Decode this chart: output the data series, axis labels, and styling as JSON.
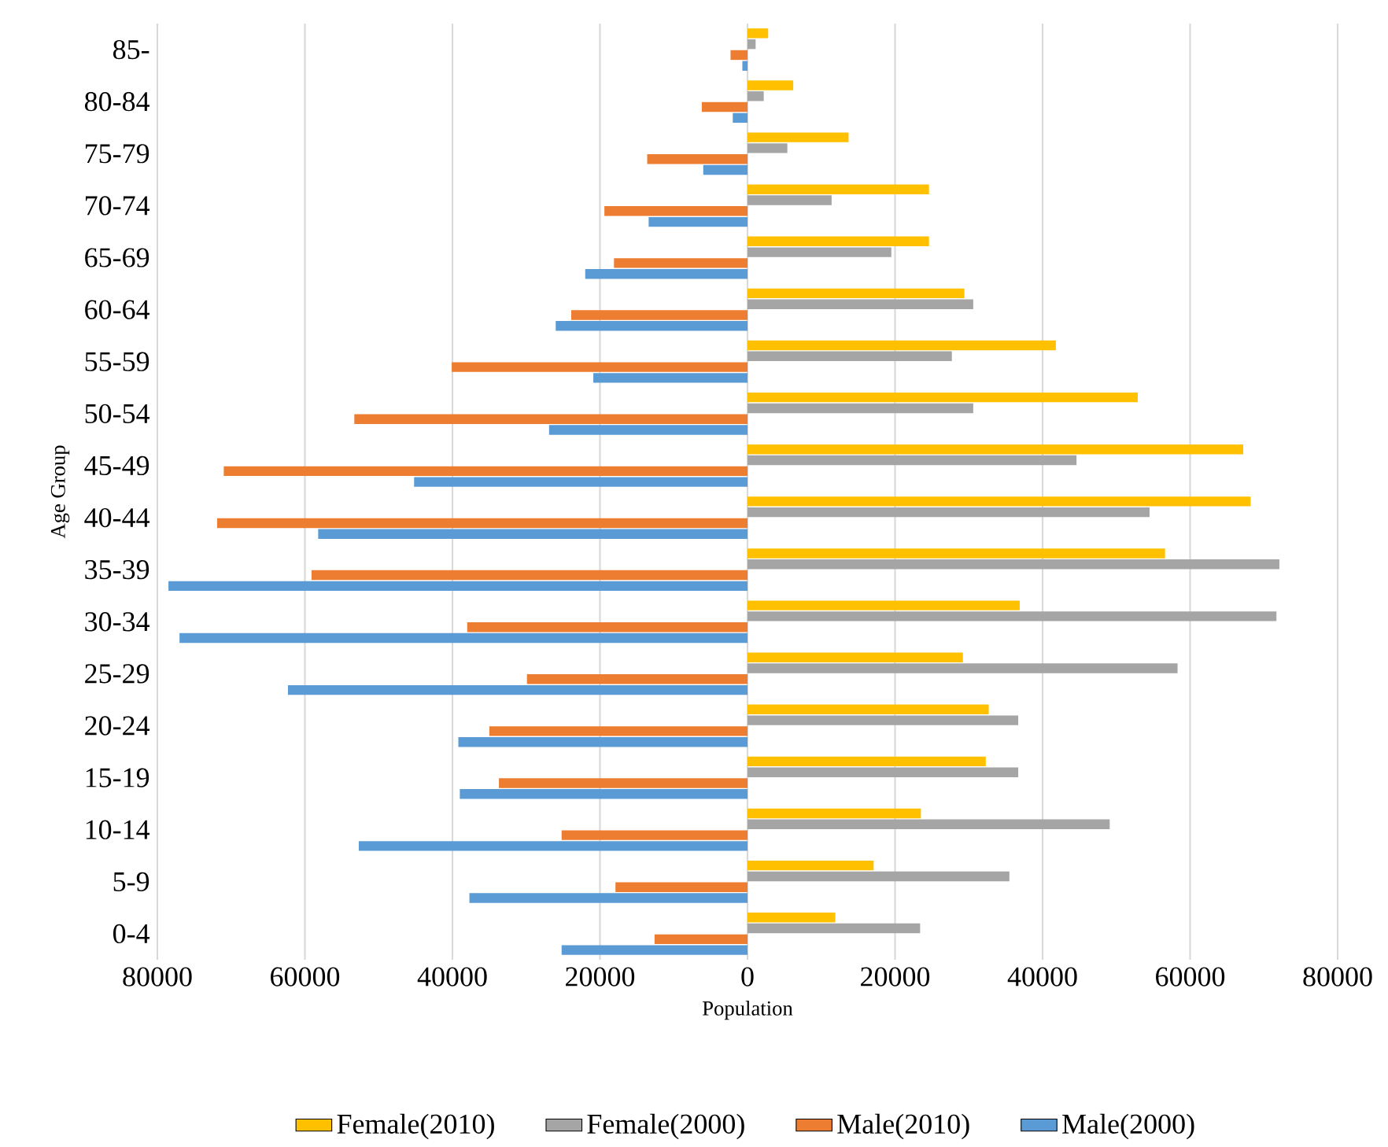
{
  "chart_data": {
    "type": "bar",
    "orientation": "horizontal",
    "xlabel": "Population",
    "ylabel": "Age Group",
    "categories": [
      "85-",
      "80-84",
      "75-79",
      "70-74",
      "65-69",
      "60-64",
      "55-59",
      "50-54",
      "45-49",
      "40-44",
      "35-39",
      "30-34",
      "25-29",
      "20-24",
      "15-19",
      "10-14",
      "5-9",
      "0-4"
    ],
    "series": [
      {
        "name": "Female(2010)",
        "color": "#ffc000",
        "values": [
          2800,
          6200,
          13700,
          24600,
          24600,
          29400,
          41800,
          52900,
          67200,
          68200,
          56600,
          36900,
          29200,
          32700,
          32300,
          23500,
          17100,
          11900
        ]
      },
      {
        "name": "Female(2000)",
        "color": "#a5a5a5",
        "values": [
          1100,
          2200,
          5400,
          11400,
          19500,
          30600,
          27700,
          30600,
          44600,
          54500,
          72100,
          71700,
          58300,
          36700,
          36700,
          49100,
          35500,
          23400
        ]
      },
      {
        "name": "Male(2010)",
        "color": "#ed7d31",
        "values": [
          -2300,
          -6200,
          -13600,
          -19400,
          -18100,
          -23900,
          -40100,
          -53300,
          -71000,
          -71900,
          -59100,
          -38000,
          -29900,
          -35000,
          -33700,
          -25200,
          -17900,
          -12600
        ]
      },
      {
        "name": "Male(2000)",
        "color": "#5b9bd5",
        "values": [
          -700,
          -2000,
          -6000,
          -13400,
          -22000,
          -26000,
          -20900,
          -26900,
          -45200,
          -58200,
          -78500,
          -77000,
          -62300,
          -39200,
          -39000,
          -52700,
          -37700,
          -25200
        ]
      }
    ],
    "xlim": [
      -80000,
      80000
    ],
    "xticks": [
      {
        "value": -80000,
        "label": "80000"
      },
      {
        "value": -60000,
        "label": "60000"
      },
      {
        "value": -40000,
        "label": "40000"
      },
      {
        "value": -20000,
        "label": "20000"
      },
      0,
      20000,
      40000,
      60000,
      80000
    ],
    "grid": "x",
    "legend": "bottom"
  }
}
